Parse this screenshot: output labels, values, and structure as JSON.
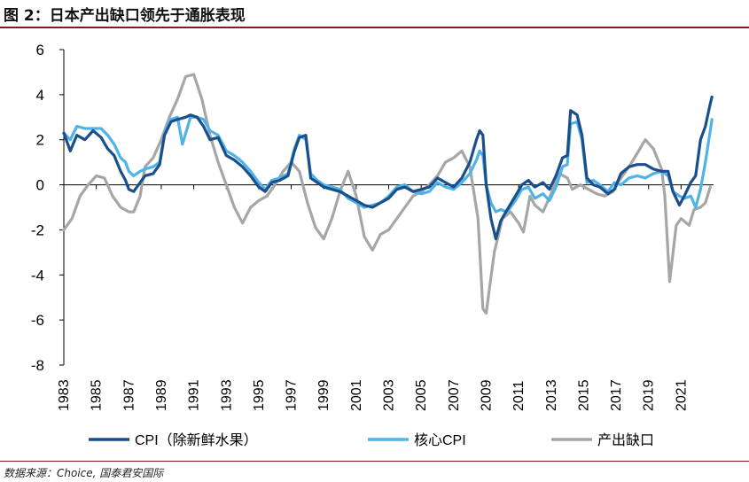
{
  "header": {
    "title": "图 2：日本产出缺口领先于通胀表现"
  },
  "source": "数据来源：Choice, 国泰君安国际",
  "chart_data": {
    "type": "line",
    "title": "日本产出缺口领先于通胀表现",
    "xlabel": "",
    "ylabel": "",
    "xlim": [
      1983,
      2023
    ],
    "ylim": [
      -8,
      6
    ],
    "y_ticks": [
      -8,
      -6,
      -4,
      -2,
      0,
      2,
      4,
      6
    ],
    "x_ticks": [
      1983,
      1985,
      1987,
      1989,
      1991,
      1993,
      1995,
      1997,
      1999,
      2001,
      2003,
      2005,
      2007,
      2009,
      2011,
      2013,
      2015,
      2017,
      2019,
      2021
    ],
    "legend_position": "bottom",
    "series": [
      {
        "name": "CPI（除新鲜水果）",
        "color": "#1a4f8c",
        "points": [
          [
            1983.0,
            2.3
          ],
          [
            1983.4,
            1.5
          ],
          [
            1983.8,
            2.2
          ],
          [
            1984.3,
            2.0
          ],
          [
            1984.8,
            2.4
          ],
          [
            1985.3,
            2.1
          ],
          [
            1985.7,
            1.6
          ],
          [
            1986.1,
            1.3
          ],
          [
            1986.5,
            0.6
          ],
          [
            1986.8,
            0.2
          ],
          [
            1987.0,
            -0.2
          ],
          [
            1987.3,
            -0.3
          ],
          [
            1987.7,
            0.1
          ],
          [
            1988.0,
            0.4
          ],
          [
            1988.5,
            0.5
          ],
          [
            1988.9,
            0.9
          ],
          [
            1989.2,
            2.2
          ],
          [
            1989.6,
            2.8
          ],
          [
            1990.0,
            2.9
          ],
          [
            1990.5,
            3.0
          ],
          [
            1990.8,
            3.1
          ],
          [
            1991.2,
            3.0
          ],
          [
            1991.6,
            2.6
          ],
          [
            1992.0,
            2.0
          ],
          [
            1992.5,
            2.1
          ],
          [
            1993.0,
            1.3
          ],
          [
            1993.5,
            1.1
          ],
          [
            1994.0,
            0.8
          ],
          [
            1994.5,
            0.4
          ],
          [
            1995.0,
            -0.1
          ],
          [
            1995.4,
            -0.3
          ],
          [
            1995.8,
            0.1
          ],
          [
            1996.3,
            0.2
          ],
          [
            1996.8,
            0.4
          ],
          [
            1997.2,
            1.5
          ],
          [
            1997.5,
            2.1
          ],
          [
            1997.9,
            2.2
          ],
          [
            1998.2,
            0.3
          ],
          [
            1998.6,
            0.1
          ],
          [
            1999.0,
            -0.1
          ],
          [
            1999.5,
            -0.2
          ],
          [
            2000.0,
            -0.3
          ],
          [
            2000.5,
            -0.5
          ],
          [
            2001.0,
            -0.7
          ],
          [
            2001.5,
            -0.9
          ],
          [
            2002.0,
            -1.0
          ],
          [
            2002.5,
            -0.8
          ],
          [
            2003.0,
            -0.6
          ],
          [
            2003.5,
            -0.2
          ],
          [
            2004.0,
            -0.1
          ],
          [
            2004.5,
            -0.3
          ],
          [
            2005.0,
            -0.2
          ],
          [
            2005.5,
            -0.1
          ],
          [
            2006.0,
            0.3
          ],
          [
            2006.5,
            0.1
          ],
          [
            2007.0,
            -0.1
          ],
          [
            2007.5,
            0.3
          ],
          [
            2008.0,
            1.0
          ],
          [
            2008.4,
            2.0
          ],
          [
            2008.6,
            2.4
          ],
          [
            2008.8,
            2.2
          ],
          [
            2009.0,
            0.0
          ],
          [
            2009.3,
            -1.5
          ],
          [
            2009.6,
            -2.4
          ],
          [
            2009.9,
            -1.6
          ],
          [
            2010.3,
            -1.1
          ],
          [
            2010.8,
            -0.5
          ],
          [
            2011.2,
            0.0
          ],
          [
            2011.6,
            0.2
          ],
          [
            2012.0,
            -0.1
          ],
          [
            2012.5,
            0.1
          ],
          [
            2012.9,
            -0.2
          ],
          [
            2013.3,
            0.4
          ],
          [
            2013.7,
            1.2
          ],
          [
            2014.0,
            1.3
          ],
          [
            2014.2,
            3.3
          ],
          [
            2014.6,
            3.1
          ],
          [
            2014.9,
            2.2
          ],
          [
            2015.2,
            0.3
          ],
          [
            2015.6,
            0.0
          ],
          [
            2016.0,
            -0.1
          ],
          [
            2016.5,
            -0.4
          ],
          [
            2016.9,
            -0.2
          ],
          [
            2017.3,
            0.5
          ],
          [
            2017.8,
            0.8
          ],
          [
            2018.3,
            0.9
          ],
          [
            2018.8,
            0.9
          ],
          [
            2019.3,
            0.7
          ],
          [
            2019.8,
            0.6
          ],
          [
            2020.2,
            0.6
          ],
          [
            2020.5,
            -0.3
          ],
          [
            2020.9,
            -0.9
          ],
          [
            2021.2,
            -0.5
          ],
          [
            2021.6,
            0.1
          ],
          [
            2021.9,
            0.4
          ],
          [
            2022.2,
            2.0
          ],
          [
            2022.5,
            2.6
          ],
          [
            2022.8,
            3.6
          ],
          [
            2022.9,
            3.9
          ]
        ]
      },
      {
        "name": "核心CPI",
        "color": "#4fb3e8",
        "points": [
          [
            1983.0,
            2.3
          ],
          [
            1983.4,
            2.0
          ],
          [
            1983.8,
            2.6
          ],
          [
            1984.3,
            2.5
          ],
          [
            1984.8,
            2.5
          ],
          [
            1985.3,
            2.5
          ],
          [
            1985.7,
            2.2
          ],
          [
            1986.1,
            1.8
          ],
          [
            1986.5,
            1.2
          ],
          [
            1986.8,
            1.0
          ],
          [
            1987.0,
            0.6
          ],
          [
            1987.3,
            0.4
          ],
          [
            1987.7,
            0.6
          ],
          [
            1988.0,
            0.7
          ],
          [
            1988.5,
            0.8
          ],
          [
            1988.9,
            1.0
          ],
          [
            1989.2,
            2.3
          ],
          [
            1989.6,
            2.9
          ],
          [
            1990.0,
            3.0
          ],
          [
            1990.3,
            1.8
          ],
          [
            1990.8,
            3.0
          ],
          [
            1991.2,
            3.0
          ],
          [
            1991.6,
            2.9
          ],
          [
            1992.0,
            2.4
          ],
          [
            1992.5,
            2.2
          ],
          [
            1993.0,
            1.5
          ],
          [
            1993.5,
            1.3
          ],
          [
            1994.0,
            1.0
          ],
          [
            1994.5,
            0.6
          ],
          [
            1995.0,
            0.1
          ],
          [
            1995.4,
            -0.2
          ],
          [
            1995.8,
            0.2
          ],
          [
            1996.3,
            0.3
          ],
          [
            1996.8,
            0.5
          ],
          [
            1997.2,
            1.6
          ],
          [
            1997.5,
            2.2
          ],
          [
            1997.9,
            2.0
          ],
          [
            1998.2,
            0.5
          ],
          [
            1998.6,
            0.2
          ],
          [
            1999.0,
            0.0
          ],
          [
            1999.5,
            -0.1
          ],
          [
            2000.0,
            -0.2
          ],
          [
            2000.5,
            -0.6
          ],
          [
            2001.0,
            -0.8
          ],
          [
            2001.5,
            -1.0
          ],
          [
            2002.0,
            -0.9
          ],
          [
            2002.5,
            -0.8
          ],
          [
            2003.0,
            -0.5
          ],
          [
            2003.5,
            -0.1
          ],
          [
            2004.0,
            0.0
          ],
          [
            2004.5,
            -0.3
          ],
          [
            2005.0,
            -0.4
          ],
          [
            2005.5,
            -0.3
          ],
          [
            2006.0,
            0.1
          ],
          [
            2006.5,
            -0.1
          ],
          [
            2007.0,
            -0.2
          ],
          [
            2007.5,
            0.1
          ],
          [
            2008.0,
            0.5
          ],
          [
            2008.4,
            1.1
          ],
          [
            2008.6,
            1.5
          ],
          [
            2008.8,
            1.3
          ],
          [
            2009.0,
            0.0
          ],
          [
            2009.3,
            -0.8
          ],
          [
            2009.6,
            -1.2
          ],
          [
            2009.9,
            -1.1
          ],
          [
            2010.3,
            -1.2
          ],
          [
            2010.8,
            -0.7
          ],
          [
            2011.2,
            -0.2
          ],
          [
            2011.6,
            -0.1
          ],
          [
            2012.0,
            -0.6
          ],
          [
            2012.5,
            -0.4
          ],
          [
            2012.9,
            -0.7
          ],
          [
            2013.3,
            -0.1
          ],
          [
            2013.7,
            0.8
          ],
          [
            2014.0,
            0.9
          ],
          [
            2014.2,
            2.7
          ],
          [
            2014.6,
            2.8
          ],
          [
            2014.9,
            2.0
          ],
          [
            2015.2,
            0.1
          ],
          [
            2015.6,
            0.2
          ],
          [
            2016.0,
            0.0
          ],
          [
            2016.5,
            -0.3
          ],
          [
            2016.9,
            0.1
          ],
          [
            2017.3,
            0.0
          ],
          [
            2017.8,
            0.3
          ],
          [
            2018.3,
            0.4
          ],
          [
            2018.8,
            0.3
          ],
          [
            2019.3,
            0.5
          ],
          [
            2019.8,
            0.6
          ],
          [
            2020.2,
            0.4
          ],
          [
            2020.5,
            -0.3
          ],
          [
            2020.9,
            -0.5
          ],
          [
            2021.2,
            -0.6
          ],
          [
            2021.6,
            -0.5
          ],
          [
            2021.9,
            -1.0
          ],
          [
            2022.2,
            -0.2
          ],
          [
            2022.5,
            1.0
          ],
          [
            2022.8,
            2.4
          ],
          [
            2022.9,
            2.9
          ]
        ]
      },
      {
        "name": "产出缺口",
        "color": "#a6a6a6",
        "points": [
          [
            1983.0,
            -2.0
          ],
          [
            1983.5,
            -1.5
          ],
          [
            1984.0,
            -0.5
          ],
          [
            1984.5,
            0.0
          ],
          [
            1985.0,
            0.4
          ],
          [
            1985.5,
            0.3
          ],
          [
            1986.0,
            -0.5
          ],
          [
            1986.5,
            -1.0
          ],
          [
            1987.0,
            -1.2
          ],
          [
            1987.3,
            -1.2
          ],
          [
            1987.7,
            -0.5
          ],
          [
            1988.0,
            0.8
          ],
          [
            1988.5,
            1.2
          ],
          [
            1989.0,
            2.0
          ],
          [
            1989.5,
            3.0
          ],
          [
            1990.0,
            3.8
          ],
          [
            1990.5,
            4.8
          ],
          [
            1991.0,
            4.9
          ],
          [
            1991.5,
            3.8
          ],
          [
            1992.0,
            2.2
          ],
          [
            1992.5,
            1.0
          ],
          [
            1993.0,
            0.0
          ],
          [
            1993.5,
            -1.0
          ],
          [
            1994.0,
            -1.7
          ],
          [
            1994.5,
            -1.0
          ],
          [
            1995.0,
            -0.7
          ],
          [
            1995.5,
            -0.5
          ],
          [
            1996.0,
            0.0
          ],
          [
            1996.5,
            0.6
          ],
          [
            1997.0,
            1.0
          ],
          [
            1997.5,
            0.6
          ],
          [
            1998.0,
            -0.8
          ],
          [
            1998.5,
            -1.9
          ],
          [
            1999.0,
            -2.4
          ],
          [
            1999.5,
            -1.5
          ],
          [
            2000.0,
            -0.3
          ],
          [
            2000.5,
            0.6
          ],
          [
            2001.0,
            -0.5
          ],
          [
            2001.5,
            -2.3
          ],
          [
            2002.0,
            -2.9
          ],
          [
            2002.5,
            -2.2
          ],
          [
            2003.0,
            -2.0
          ],
          [
            2003.5,
            -1.5
          ],
          [
            2004.0,
            -1.0
          ],
          [
            2004.5,
            -0.5
          ],
          [
            2005.0,
            -0.3
          ],
          [
            2005.5,
            0.0
          ],
          [
            2006.0,
            0.4
          ],
          [
            2006.5,
            1.0
          ],
          [
            2007.0,
            1.2
          ],
          [
            2007.5,
            1.5
          ],
          [
            2008.0,
            0.8
          ],
          [
            2008.5,
            -1.5
          ],
          [
            2008.8,
            -5.5
          ],
          [
            2009.0,
            -5.7
          ],
          [
            2009.5,
            -3.0
          ],
          [
            2010.0,
            -1.5
          ],
          [
            2010.5,
            -1.2
          ],
          [
            2011.0,
            -1.7
          ],
          [
            2011.3,
            -2.1
          ],
          [
            2011.7,
            -0.5
          ],
          [
            2012.0,
            -0.9
          ],
          [
            2012.5,
            -1.2
          ],
          [
            2013.0,
            -0.4
          ],
          [
            2013.5,
            0.5
          ],
          [
            2014.0,
            0.3
          ],
          [
            2014.3,
            -0.2
          ],
          [
            2014.8,
            0.0
          ],
          [
            2015.3,
            -0.2
          ],
          [
            2015.8,
            -0.4
          ],
          [
            2016.3,
            -0.5
          ],
          [
            2016.8,
            -0.3
          ],
          [
            2017.3,
            0.3
          ],
          [
            2017.8,
            0.8
          ],
          [
            2018.3,
            1.4
          ],
          [
            2018.8,
            2.0
          ],
          [
            2019.3,
            1.6
          ],
          [
            2019.8,
            0.7
          ],
          [
            2020.0,
            -0.5
          ],
          [
            2020.3,
            -4.3
          ],
          [
            2020.7,
            -1.8
          ],
          [
            2021.0,
            -1.5
          ],
          [
            2021.5,
            -1.8
          ],
          [
            2021.8,
            -1.1
          ],
          [
            2022.2,
            -1.0
          ],
          [
            2022.5,
            -0.8
          ],
          [
            2022.8,
            -0.1
          ]
        ]
      }
    ]
  }
}
